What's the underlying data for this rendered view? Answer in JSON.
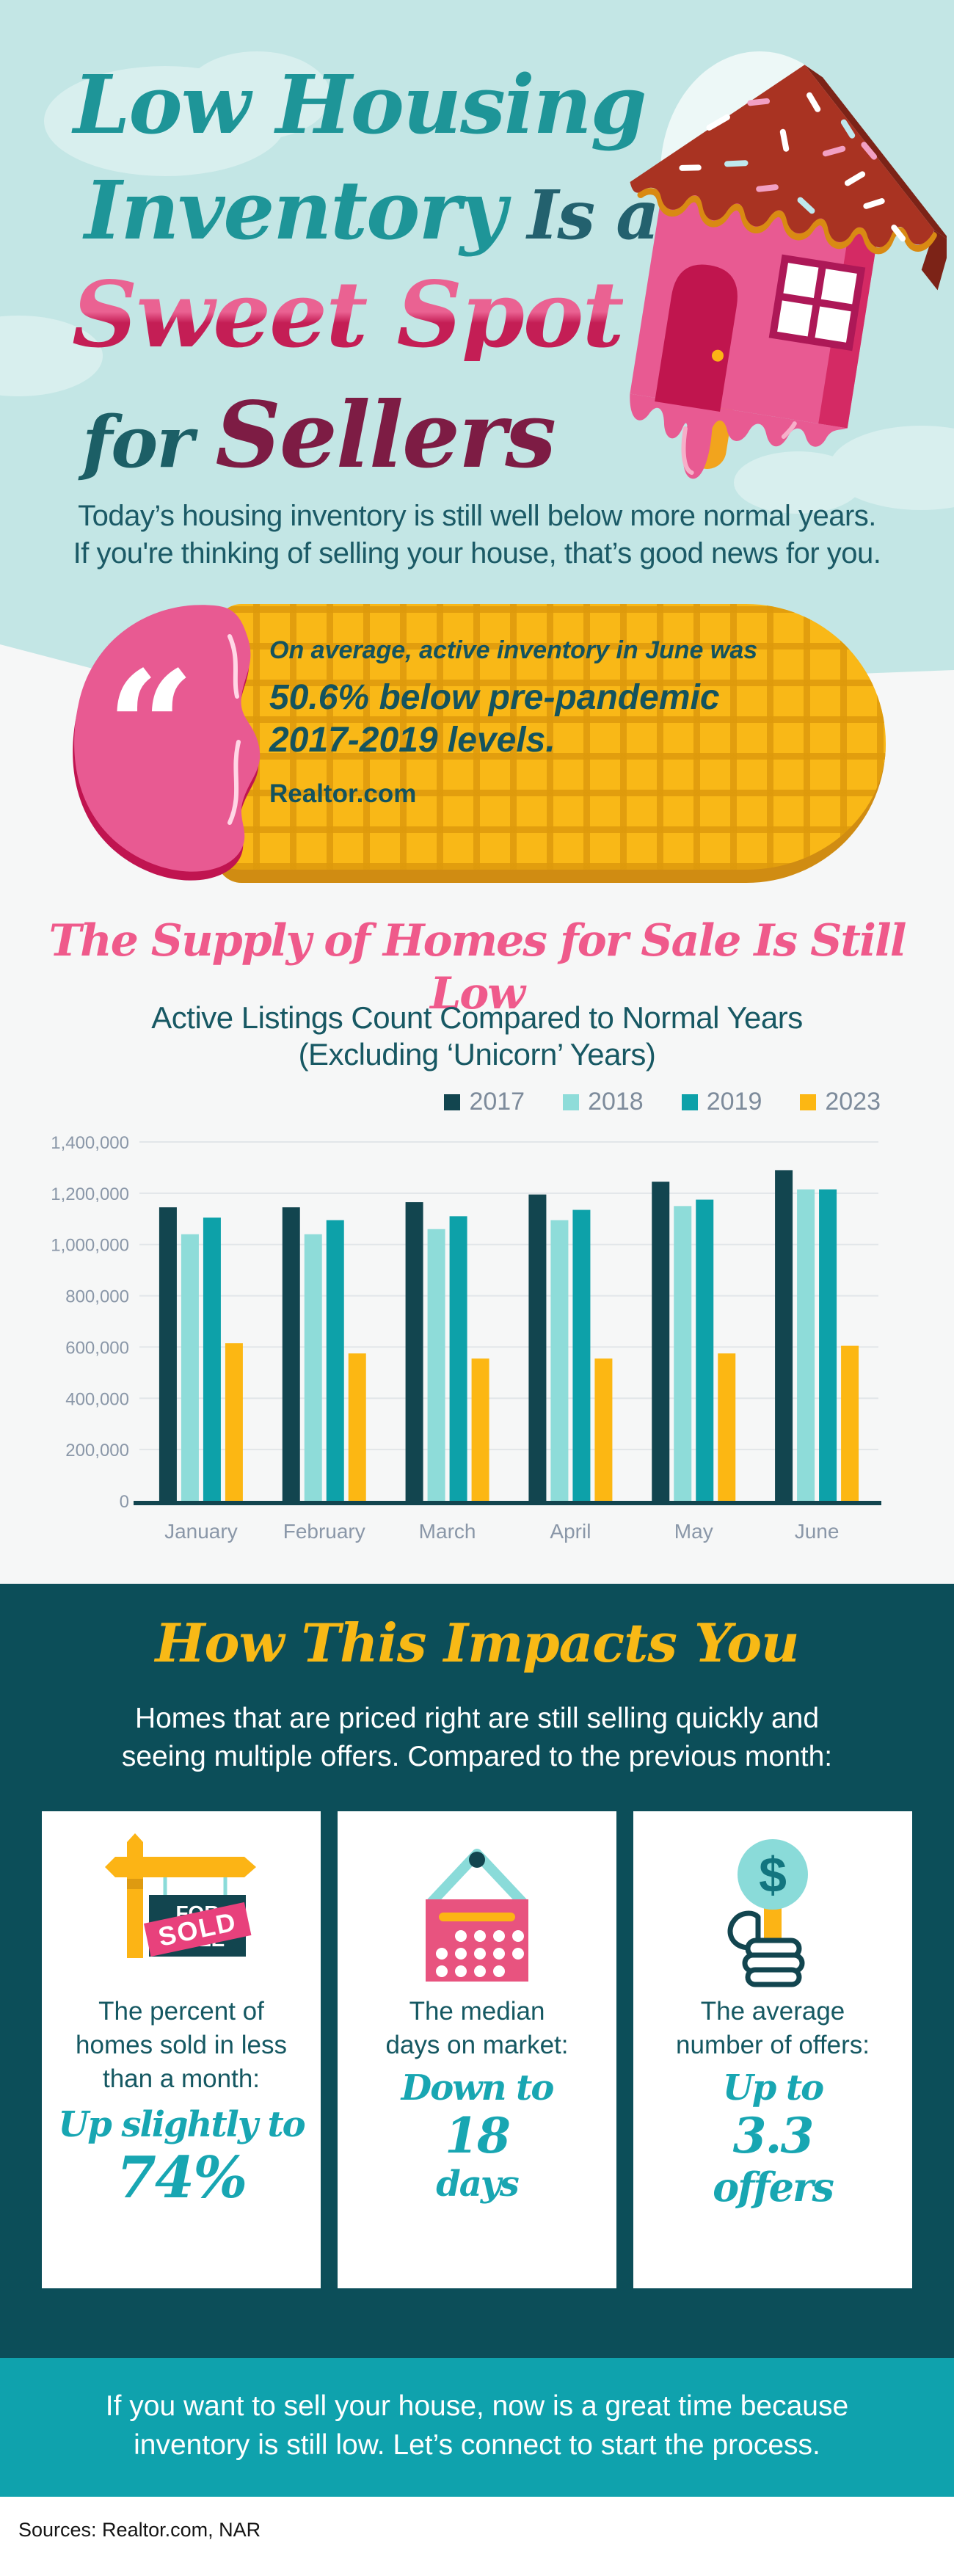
{
  "header": {
    "title_line1": "Low Housing",
    "title_line2_part1": "Inventory",
    "title_line2_part2": " Is a",
    "title_line3": "Sweet Spot",
    "title_line4_part1": "for ",
    "title_line4_part2": "Sellers",
    "subtitle_line1": "Today’s housing inventory is still well below more normal years.",
    "subtitle_line2": "If you're thinking of selling your house, that’s good news for you."
  },
  "quote": {
    "mark": "“",
    "line1": "On average, active inventory in June was",
    "line2": "50.6% below pre-pandemic",
    "line3": "2017-2019 levels.",
    "source": "Realtor.com"
  },
  "chart_section": {
    "title": "The Supply of Homes for Sale Is Still Low",
    "subtitle_line1": "Active Listings Count Compared to Normal Years",
    "subtitle_line2": "(Excluding ‘Unicorn’ Years)"
  },
  "chart_data": {
    "type": "bar",
    "title": "Active Listings Count Compared to Normal Years (Excluding ‘Unicorn’ Years)",
    "categories": [
      "January",
      "February",
      "March",
      "April",
      "May",
      "June"
    ],
    "series": [
      {
        "name": "2017",
        "color": "#12454f",
        "values": [
          1145000,
          1145000,
          1165000,
          1195000,
          1245000,
          1290000
        ]
      },
      {
        "name": "2018",
        "color": "#8edcd9",
        "values": [
          1040000,
          1040000,
          1060000,
          1095000,
          1150000,
          1215000
        ]
      },
      {
        "name": "2019",
        "color": "#0da1a9",
        "values": [
          1105000,
          1095000,
          1110000,
          1135000,
          1175000,
          1215000
        ]
      },
      {
        "name": "2023",
        "color": "#fcb713",
        "values": [
          615000,
          575000,
          555000,
          555000,
          575000,
          605000
        ]
      }
    ],
    "xlabel": "",
    "ylabel": "",
    "ylim": [
      0,
      1400000
    ],
    "ytick_step": 200000,
    "ytick_labels": [
      "0",
      "200,000",
      "400,000",
      "600,000",
      "800,000",
      "1,000,000",
      "1,200,000",
      "1,400,000"
    ],
    "grid": true,
    "legend_position": "top-right"
  },
  "impact": {
    "heading": "How This Impacts You",
    "intro_line1": "Homes that are priced right are still selling quickly and",
    "intro_line2": "seeing multiple offers. Compared to the previous month:",
    "cards": [
      {
        "icon": "sold-sign",
        "sign_line1": "FOR",
        "sign_line2": "SALE",
        "banner": "SOLD",
        "label_lines": [
          "The percent of",
          "homes sold in less",
          "than a month:"
        ],
        "value_lines": [
          "Up slightly to",
          "74%"
        ]
      },
      {
        "icon": "calendar",
        "label_lines": [
          "The median",
          "days on market:"
        ],
        "value_lines": [
          "Down to",
          "18",
          "days"
        ]
      },
      {
        "icon": "offers",
        "dollar": "$",
        "label_lines": [
          "The average",
          "number of offers:"
        ],
        "value_lines": [
          "Up to",
          "3.3",
          "offers"
        ]
      }
    ]
  },
  "footer": {
    "cta_line1": "If you want to sell your house, now is a great time because",
    "cta_line2": "inventory is still low. Let’s connect to start the process.",
    "sources": "Sources: Realtor.com, NAR"
  },
  "colors": {
    "header_bg": "#c3e6e5",
    "title_teal": "#1e9598",
    "title_pink": "#ea6292",
    "title_crimson": "#c41e55",
    "title_maroon": "#7d1c44",
    "quote_yellow": "#f9b817",
    "quote_pink": "#e85a92",
    "dark_teal_section": "#0c4e59",
    "footer_teal": "#0fa2ad",
    "accent_yellow": "#f8b916",
    "script_teal": "#18a6b2",
    "bar_2017": "#12454f",
    "bar_2018": "#8edcd9",
    "bar_2019": "#0da1a9",
    "bar_2023": "#fcb713"
  }
}
